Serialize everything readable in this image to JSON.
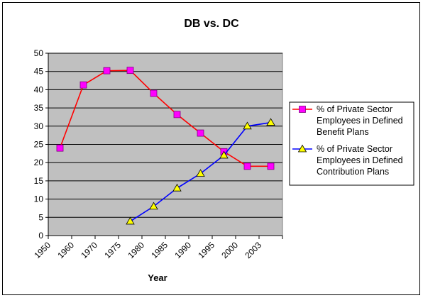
{
  "chart_data": {
    "type": "line",
    "title": "DB vs. DC",
    "xlabel": "Year",
    "ylabel": "",
    "x": [
      "1950",
      "1960",
      "1970",
      "1975",
      "1980",
      "1985",
      "1990",
      "1995",
      "2000",
      "2003"
    ],
    "ylim": [
      0,
      50
    ],
    "ytick_step": 5,
    "grid": true,
    "legend": "right",
    "series": [
      {
        "name": "% of Private Sector Employees in Defined Benefit Plans",
        "color": "#ff0000",
        "marker": "square",
        "marker_color": "#ff00ff",
        "values": [
          24,
          41.3,
          45.2,
          45.3,
          39,
          33.2,
          28.1,
          23,
          19,
          19
        ]
      },
      {
        "name": "% of Private Sector Employees in Defined Contribution Plans",
        "color": "#0000ff",
        "marker": "triangle",
        "marker_color": "#ffff00",
        "values": [
          null,
          null,
          null,
          3.9,
          8,
          13,
          17,
          22,
          30,
          31
        ]
      }
    ]
  }
}
